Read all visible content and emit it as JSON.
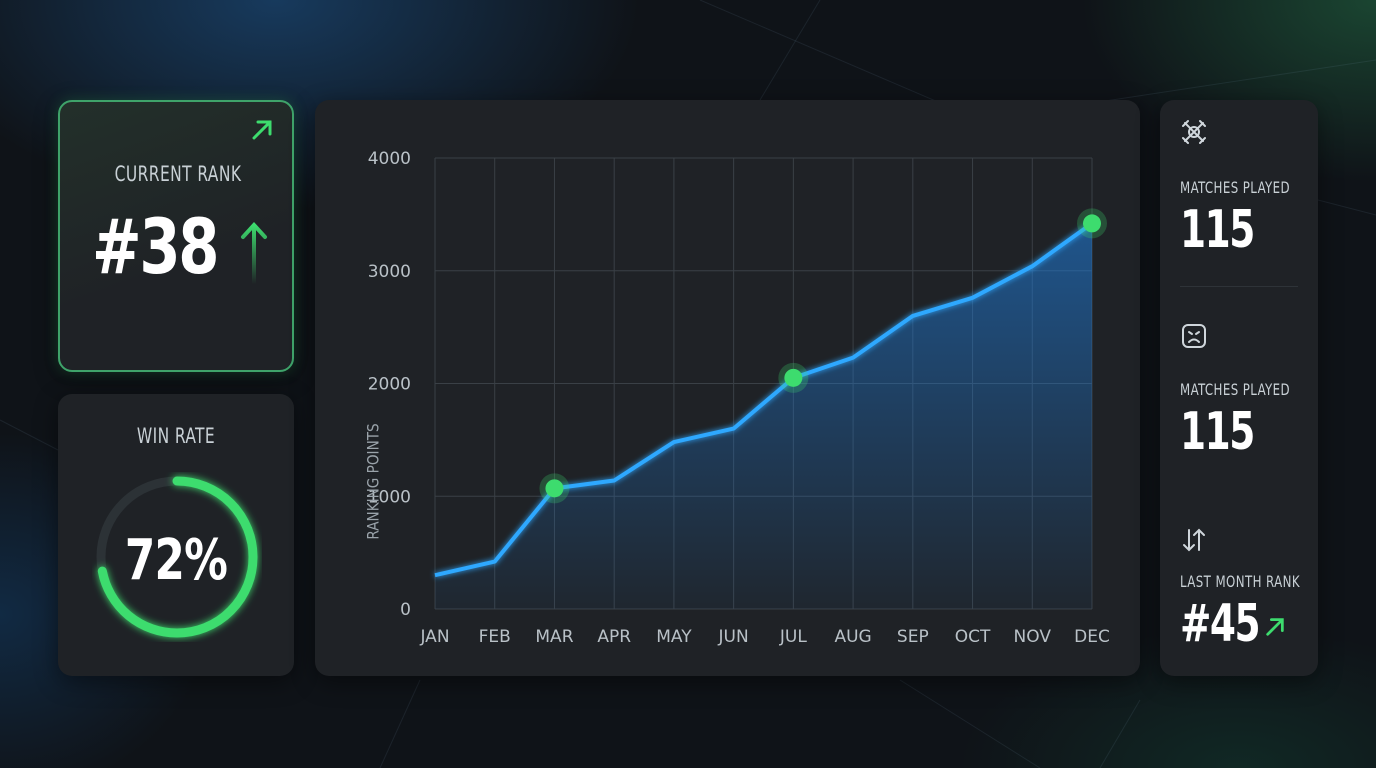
{
  "current_rank": {
    "label": "CURRENT RANK",
    "value": "#38",
    "trend": "up"
  },
  "win_rate": {
    "label": "WIN RATE",
    "value": "72%",
    "percent": 72
  },
  "stats": [
    {
      "icon": "crossed-swords-icon",
      "label": "MATCHES PLAYED",
      "value": "115"
    },
    {
      "icon": "frown-face-icon",
      "label": "MATCHES PLAYED",
      "value": "115"
    },
    {
      "icon": "swap-arrows-icon",
      "label": "LAST MONTH RANK",
      "value": "#45",
      "trend": "up"
    }
  ],
  "colors": {
    "accent_green": "#3ddc6e",
    "line_blue": "#2ea8ff",
    "card_bg": "#1f2226"
  },
  "chart_data": {
    "type": "area",
    "title": "",
    "xlabel": "",
    "ylabel": "RANKING POINTS",
    "categories": [
      "JAN",
      "FEB",
      "MAR",
      "APR",
      "MAY",
      "JUN",
      "JUL",
      "AUG",
      "SEP",
      "OCT",
      "NOV",
      "DEC"
    ],
    "values": [
      300,
      420,
      1070,
      1140,
      1480,
      1600,
      2050,
      2230,
      2600,
      2760,
      3040,
      3420
    ],
    "highlighted": [
      "MAR",
      "JUL",
      "DEC"
    ],
    "yticks": [
      "0",
      "1000",
      "2000",
      "3000",
      "4000"
    ],
    "ylim": [
      0,
      4000
    ],
    "grid": true
  }
}
